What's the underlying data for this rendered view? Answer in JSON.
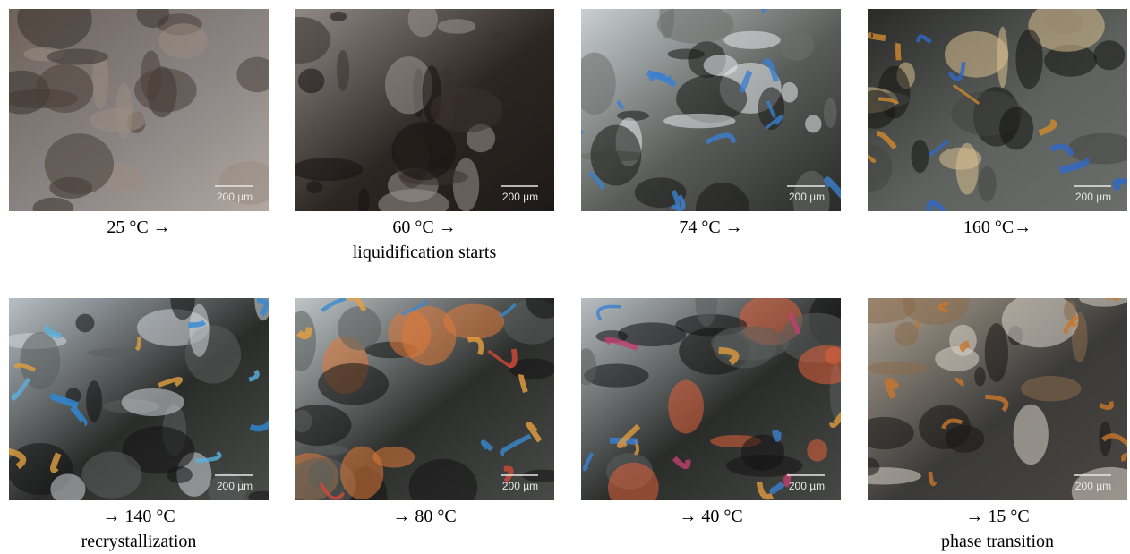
{
  "panels": [
    {
      "scale_bar": "200 µm",
      "caption": [
        "25 °C →"
      ]
    },
    {
      "scale_bar": "200 µm",
      "caption": [
        "60 °C →",
        "liquidification starts"
      ]
    },
    {
      "scale_bar": "200 µm",
      "caption": [
        "74 °C →"
      ]
    },
    {
      "scale_bar": "200 µm",
      "caption": [
        "160 °C→"
      ]
    },
    {
      "scale_bar": "200 µm",
      "caption": [
        "→ 140 °C",
        "recrystallization"
      ]
    },
    {
      "scale_bar": "200 µm",
      "caption": [
        "→ 80 °C"
      ]
    },
    {
      "scale_bar": "200 µm",
      "caption": [
        "→ 40 °C"
      ]
    },
    {
      "scale_bar": "200 µm",
      "caption": [
        "→ 15 °C",
        "phase transition"
      ]
    }
  ]
}
